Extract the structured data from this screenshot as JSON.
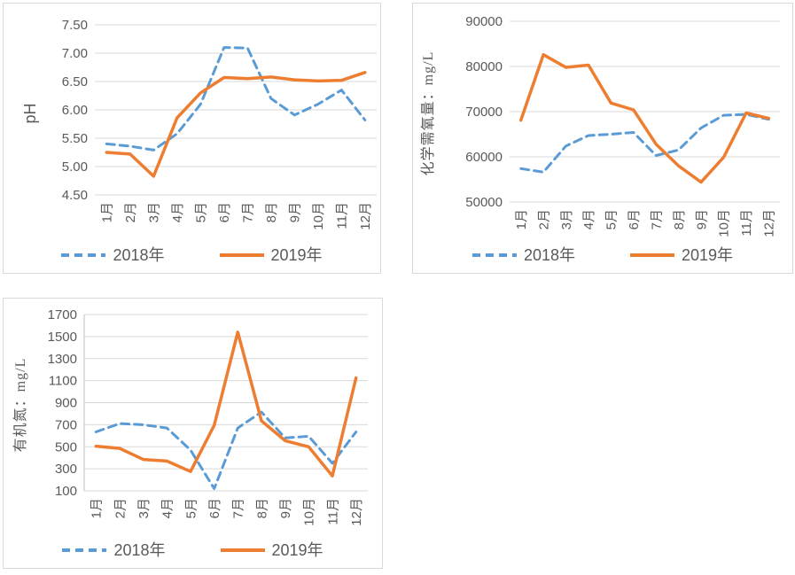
{
  "colors": {
    "series_2018": "#5B9BD5",
    "series_2019": "#ED7D31",
    "axis_text": "#595959",
    "gridline": "#D9D9D9",
    "axis_line": "#BFBFBF",
    "panel_border": "#D9D9D9"
  },
  "chart_data": [
    {
      "type": "line",
      "title": "",
      "xlabel": "",
      "ylabel": "pH",
      "categories": [
        "1月",
        "2月",
        "3月",
        "4月",
        "5月",
        "6月",
        "7月",
        "8月",
        "9月",
        "10月",
        "11月",
        "12月"
      ],
      "series": [
        {
          "name": "2018年",
          "color": "#5B9BD5",
          "dashed": true,
          "values": [
            5.4,
            5.36,
            5.29,
            5.58,
            6.1,
            7.1,
            7.09,
            6.2,
            5.91,
            6.1,
            6.35,
            5.82
          ]
        },
        {
          "name": "2019年",
          "color": "#ED7D31",
          "dashed": false,
          "values": [
            5.25,
            5.22,
            4.83,
            5.86,
            6.3,
            6.57,
            6.55,
            6.58,
            6.53,
            6.51,
            6.52,
            6.66
          ]
        }
      ],
      "ylim": [
        4.5,
        7.5
      ],
      "ytick_values": [
        7.5,
        7.0,
        6.5,
        6.0,
        5.5,
        5.0,
        4.5
      ],
      "ytick_labels": [
        "7.50",
        "7.00",
        "6.50",
        "6.00",
        "5.50",
        "5.00",
        "4.50"
      ],
      "grid": true,
      "y_axis_line": false,
      "legend_position": "bottom"
    },
    {
      "type": "line",
      "title": "",
      "xlabel": "",
      "ylabel": "化学需氧量：mg/L",
      "categories": [
        "1月",
        "2月",
        "3月",
        "4月",
        "5月",
        "6月",
        "7月",
        "8月",
        "9月",
        "10月",
        "11月",
        "12月"
      ],
      "series": [
        {
          "name": "2018年",
          "color": "#5B9BD5",
          "dashed": true,
          "values": [
            57400,
            56600,
            62400,
            64700,
            65000,
            65400,
            60300,
            61500,
            66400,
            69200,
            69400,
            68300
          ]
        },
        {
          "name": "2019年",
          "color": "#ED7D31",
          "dashed": false,
          "values": [
            68100,
            82600,
            79800,
            80300,
            71900,
            70400,
            62800,
            58000,
            54400,
            59900,
            69700,
            68500
          ]
        }
      ],
      "ylim": [
        50000,
        90000
      ],
      "ytick_values": [
        90000,
        80000,
        70000,
        60000,
        50000
      ],
      "ytick_labels": [
        "90000",
        "80000",
        "70000",
        "60000",
        "50000"
      ],
      "grid": true,
      "y_axis_line": false,
      "legend_position": "bottom"
    },
    {
      "type": "line",
      "title": "",
      "xlabel": "",
      "ylabel": "有机氮：mg/L",
      "categories": [
        "1月",
        "2月",
        "3月",
        "4月",
        "5月",
        "6月",
        "7月",
        "8月",
        "9月",
        "10月",
        "11月",
        "12月"
      ],
      "series": [
        {
          "name": "2018年",
          "color": "#5B9BD5",
          "dashed": true,
          "values": [
            635,
            710,
            700,
            670,
            470,
            120,
            670,
            815,
            580,
            595,
            350,
            635
          ]
        },
        {
          "name": "2019年",
          "color": "#ED7D31",
          "dashed": false,
          "values": [
            505,
            485,
            385,
            370,
            275,
            695,
            1540,
            735,
            555,
            500,
            235,
            1125
          ]
        }
      ],
      "ylim": [
        100,
        1700
      ],
      "ytick_values": [
        1700,
        1500,
        1300,
        1100,
        900,
        700,
        500,
        300,
        100
      ],
      "ytick_labels": [
        "1700",
        "1500",
        "1300",
        "1100",
        "900",
        "700",
        "500",
        "300",
        "100"
      ],
      "grid": true,
      "y_axis_line": true,
      "legend_position": "bottom"
    }
  ]
}
